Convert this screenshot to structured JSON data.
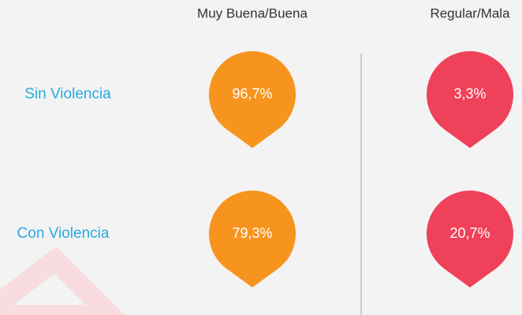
{
  "columns": [
    "Muy Buena/Buena",
    "Regular/Mala"
  ],
  "rows": [
    {
      "label": "Sin Violencia",
      "values": [
        "96,7%",
        "3,3%"
      ]
    },
    {
      "label": "Con Violencia",
      "values": [
        "79,3%",
        "20,7%"
      ]
    }
  ]
}
